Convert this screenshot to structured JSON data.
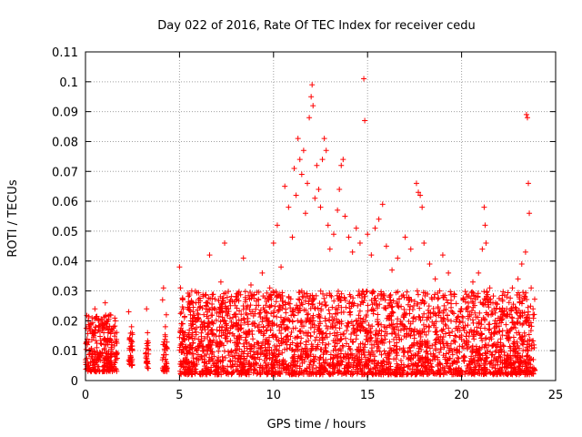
{
  "chart_data": {
    "type": "scatter",
    "title": "Day 022 of 2016, Rate Of TEC Index for receiver cedu",
    "xlabel": "GPS time / hours",
    "ylabel": "ROTI / TECUs",
    "xlim": [
      0,
      25
    ],
    "ylim": [
      0,
      0.11
    ],
    "xticks": [
      0,
      5,
      10,
      15,
      20,
      25
    ],
    "xtick_labels": [
      "0",
      "5",
      "10",
      "15",
      "20",
      "25"
    ],
    "yticks": [
      0,
      0.01,
      0.02,
      0.03,
      0.04,
      0.05,
      0.06,
      0.07,
      0.08,
      0.09,
      0.1,
      0.11
    ],
    "ytick_labels": [
      "0",
      "0.01",
      "0.02",
      "0.03",
      "0.04",
      "0.05",
      "0.06",
      "0.07",
      "0.08",
      "0.09",
      "0.1",
      "0.11"
    ],
    "grid": true,
    "marker": "+",
    "color": "#ff0000",
    "series": [
      {
        "name": "ROTI",
        "points": [
          [
            0.1,
            0.012
          ],
          [
            0.2,
            0.018
          ],
          [
            0.3,
            0.008
          ],
          [
            0.35,
            0.021
          ],
          [
            0.45,
            0.015
          ],
          [
            0.5,
            0.024
          ],
          [
            0.6,
            0.011
          ],
          [
            0.7,
            0.017
          ],
          [
            0.8,
            0.009
          ],
          [
            0.9,
            0.019
          ],
          [
            1.0,
            0.014
          ],
          [
            1.05,
            0.026
          ],
          [
            1.1,
            0.007
          ],
          [
            1.2,
            0.016
          ],
          [
            1.3,
            0.022
          ],
          [
            1.4,
            0.012
          ],
          [
            1.5,
            0.018
          ],
          [
            1.55,
            0.006
          ],
          [
            1.6,
            0.013
          ],
          [
            2.3,
            0.023
          ],
          [
            2.35,
            0.014
          ],
          [
            2.4,
            0.008
          ],
          [
            2.45,
            0.018
          ],
          [
            3.2,
            0.009
          ],
          [
            3.25,
            0.024
          ],
          [
            3.3,
            0.016
          ],
          [
            4.1,
            0.027
          ],
          [
            4.15,
            0.031
          ],
          [
            4.2,
            0.012
          ],
          [
            4.25,
            0.018
          ],
          [
            4.3,
            0.022
          ],
          [
            5.0,
            0.038
          ],
          [
            5.05,
            0.031
          ],
          [
            5.1,
            0.019
          ],
          [
            5.15,
            0.012
          ],
          [
            5.2,
            0.024
          ],
          [
            5.3,
            0.016
          ],
          [
            5.4,
            0.01
          ],
          [
            5.6,
            0.02
          ],
          [
            5.8,
            0.014
          ],
          [
            6.0,
            0.022
          ],
          [
            6.2,
            0.017
          ],
          [
            6.4,
            0.026
          ],
          [
            6.6,
            0.042
          ],
          [
            6.8,
            0.019
          ],
          [
            7.0,
            0.013
          ],
          [
            7.2,
            0.033
          ],
          [
            7.4,
            0.046
          ],
          [
            7.6,
            0.024
          ],
          [
            7.8,
            0.018
          ],
          [
            8.0,
            0.028
          ],
          [
            8.2,
            0.015
          ],
          [
            8.4,
            0.041
          ],
          [
            8.6,
            0.022
          ],
          [
            8.8,
            0.032
          ],
          [
            9.0,
            0.019
          ],
          [
            9.2,
            0.027
          ],
          [
            9.4,
            0.036
          ],
          [
            9.6,
            0.021
          ],
          [
            9.8,
            0.031
          ],
          [
            10.0,
            0.046
          ],
          [
            10.2,
            0.052
          ],
          [
            10.4,
            0.038
          ],
          [
            10.6,
            0.065
          ],
          [
            10.8,
            0.058
          ],
          [
            11.0,
            0.048
          ],
          [
            11.1,
            0.071
          ],
          [
            11.2,
            0.062
          ],
          [
            11.3,
            0.081
          ],
          [
            11.4,
            0.074
          ],
          [
            11.5,
            0.069
          ],
          [
            11.6,
            0.077
          ],
          [
            11.7,
            0.056
          ],
          [
            11.8,
            0.066
          ],
          [
            11.9,
            0.088
          ],
          [
            12.0,
            0.095
          ],
          [
            12.05,
            0.099
          ],
          [
            12.1,
            0.092
          ],
          [
            12.2,
            0.061
          ],
          [
            12.3,
            0.072
          ],
          [
            12.4,
            0.064
          ],
          [
            12.5,
            0.058
          ],
          [
            12.6,
            0.074
          ],
          [
            12.7,
            0.081
          ],
          [
            12.8,
            0.077
          ],
          [
            12.9,
            0.052
          ],
          [
            13.0,
            0.044
          ],
          [
            13.2,
            0.049
          ],
          [
            13.4,
            0.057
          ],
          [
            13.5,
            0.064
          ],
          [
            13.6,
            0.072
          ],
          [
            13.7,
            0.074
          ],
          [
            13.8,
            0.055
          ],
          [
            14.0,
            0.048
          ],
          [
            14.2,
            0.043
          ],
          [
            14.4,
            0.051
          ],
          [
            14.6,
            0.046
          ],
          [
            14.8,
            0.101
          ],
          [
            14.85,
            0.087
          ],
          [
            15.0,
            0.049
          ],
          [
            15.2,
            0.042
          ],
          [
            15.4,
            0.051
          ],
          [
            15.6,
            0.054
          ],
          [
            15.8,
            0.059
          ],
          [
            16.0,
            0.045
          ],
          [
            16.3,
            0.037
          ],
          [
            16.6,
            0.041
          ],
          [
            17.0,
            0.048
          ],
          [
            17.3,
            0.044
          ],
          [
            17.6,
            0.066
          ],
          [
            17.7,
            0.063
          ],
          [
            17.8,
            0.062
          ],
          [
            17.9,
            0.058
          ],
          [
            18.0,
            0.046
          ],
          [
            18.3,
            0.039
          ],
          [
            18.6,
            0.034
          ],
          [
            19.0,
            0.042
          ],
          [
            19.3,
            0.036
          ],
          [
            19.6,
            0.029
          ],
          [
            20.0,
            0.024
          ],
          [
            20.3,
            0.028
          ],
          [
            20.6,
            0.033
          ],
          [
            20.9,
            0.036
          ],
          [
            21.1,
            0.044
          ],
          [
            21.2,
            0.058
          ],
          [
            21.25,
            0.052
          ],
          [
            21.3,
            0.046
          ],
          [
            21.5,
            0.031
          ],
          [
            21.8,
            0.026
          ],
          [
            22.1,
            0.023
          ],
          [
            22.4,
            0.028
          ],
          [
            22.7,
            0.031
          ],
          [
            23.0,
            0.034
          ],
          [
            23.2,
            0.039
          ],
          [
            23.4,
            0.043
          ],
          [
            23.45,
            0.089
          ],
          [
            23.5,
            0.088
          ],
          [
            23.55,
            0.066
          ],
          [
            23.6,
            0.056
          ],
          [
            23.7,
            0.031
          ],
          [
            23.8,
            0.024
          ]
        ]
      }
    ],
    "bulk_bands": [
      {
        "x": [
          0.0,
          1.7
        ],
        "y": [
          0.003,
          0.022
        ]
      },
      {
        "x": [
          2.3,
          2.5
        ],
        "y": [
          0.005,
          0.016
        ]
      },
      {
        "x": [
          3.2,
          3.35
        ],
        "y": [
          0.004,
          0.014
        ]
      },
      {
        "x": [
          4.1,
          4.35
        ],
        "y": [
          0.003,
          0.016
        ]
      },
      {
        "x": [
          5.0,
          23.9
        ],
        "y": [
          0.002,
          0.03
        ]
      }
    ]
  }
}
